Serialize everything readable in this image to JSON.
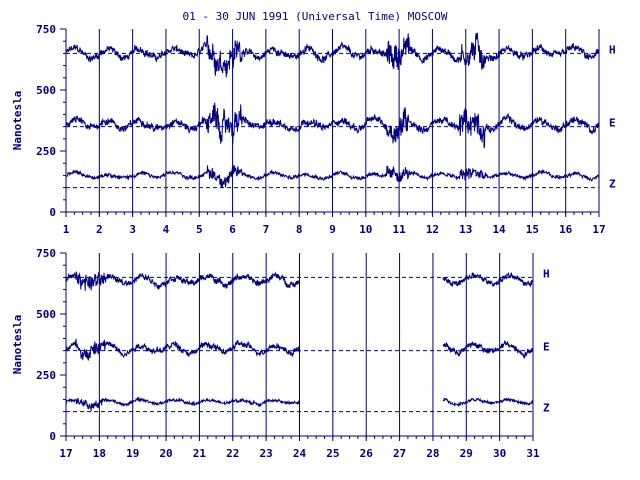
{
  "title": "01 - 30 JUN 1991 (Universal Time) MOSCOW",
  "chart_data": [
    {
      "type": "line",
      "panel": "top",
      "title": "01 - 30 JUN 1991 (Universal Time) MOSCOW",
      "ylabel": "Nanotesla",
      "ylim": [
        0,
        750
      ],
      "yticks": [
        "0",
        "250",
        "500",
        "750"
      ],
      "xlim": [
        1,
        17
      ],
      "xticks": [
        "1",
        "2",
        "3",
        "4",
        "5",
        "6",
        "7",
        "8",
        "9",
        "10",
        "11",
        "12",
        "13",
        "14",
        "15",
        "16",
        "17"
      ],
      "reference_lines": [
        {
          "component": "H",
          "value": 650
        },
        {
          "component": "E",
          "value": 350
        },
        {
          "component": "Z",
          "value": 100
        }
      ],
      "series": [
        {
          "name": "H",
          "baseline": 650,
          "noise": 30
        },
        {
          "name": "E",
          "baseline": 360,
          "noise": 30
        },
        {
          "name": "Z",
          "baseline": 150,
          "noise": 15
        }
      ],
      "data_range": [
        1,
        17
      ],
      "grid": "vertical-per-day"
    },
    {
      "type": "line",
      "panel": "bottom",
      "ylabel": "Nanotesla",
      "ylim": [
        0,
        750
      ],
      "yticks": [
        "0",
        "250",
        "500",
        "750"
      ],
      "xlim": [
        17,
        31
      ],
      "xticks": [
        "17",
        "18",
        "19",
        "20",
        "21",
        "22",
        "23",
        "24",
        "25",
        "26",
        "27",
        "28",
        "29",
        "30",
        "31"
      ],
      "reference_lines": [
        {
          "component": "H",
          "value": 650
        },
        {
          "component": "E",
          "value": 350
        },
        {
          "component": "Z",
          "value": 100
        }
      ],
      "series": [
        {
          "name": "H",
          "baseline": 640,
          "noise": 25
        },
        {
          "name": "E",
          "baseline": 360,
          "noise": 25
        },
        {
          "name": "Z",
          "baseline": 140,
          "noise": 12
        }
      ],
      "data_ranges": [
        [
          17,
          24
        ],
        [
          28.3,
          31
        ]
      ],
      "grid": "vertical-per-day"
    }
  ],
  "colors": {
    "ink": "#000080",
    "background": "#ffffff"
  }
}
